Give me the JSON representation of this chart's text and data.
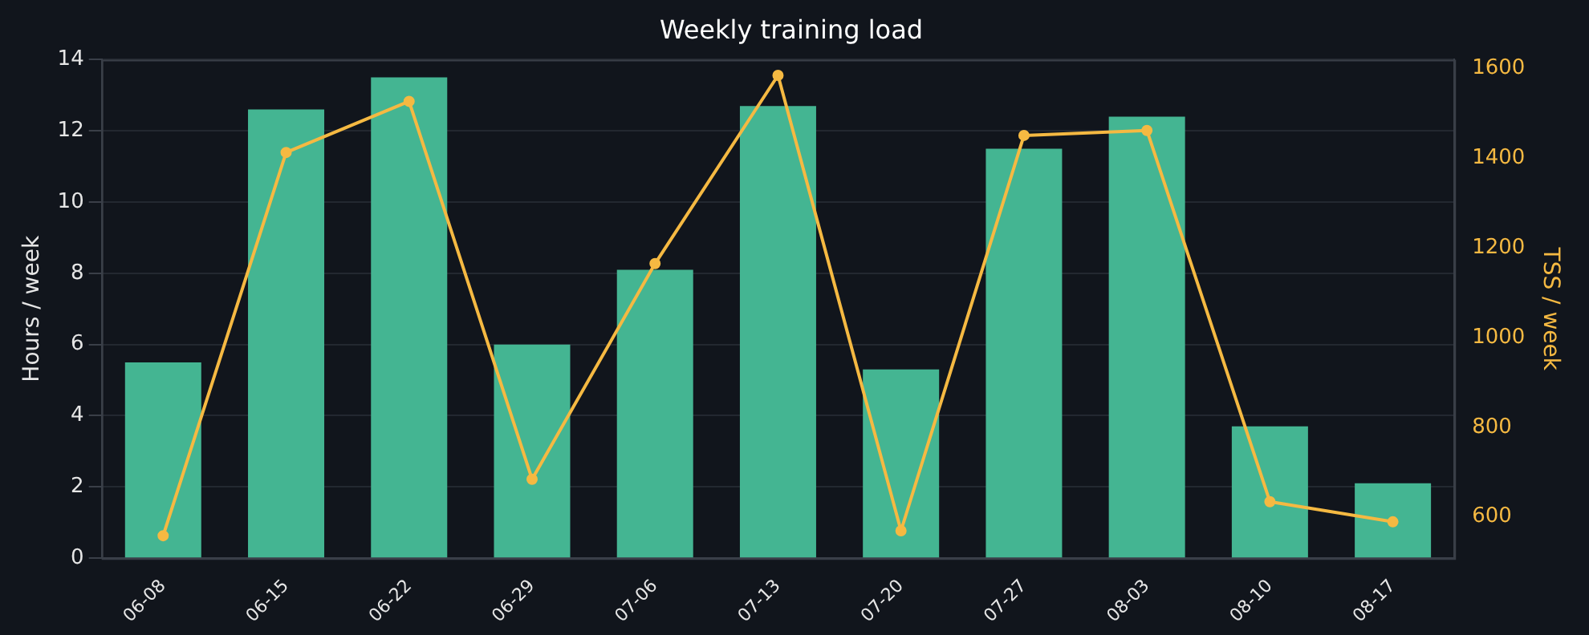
{
  "chart_data": {
    "type": "bar",
    "title": "Weekly training load",
    "ylabel": "Hours / week",
    "y2label": "TSS / week",
    "categories": [
      "06-08",
      "06-15",
      "06-22",
      "06-29",
      "07-06",
      "07-13",
      "07-20",
      "07-27",
      "08-03",
      "08-10",
      "08-17"
    ],
    "series": [
      {
        "color": "#44b592",
        "values": [
          5.5,
          12.6,
          13.5,
          6.0,
          8.1,
          12.7,
          5.3,
          11.5,
          12.4,
          3.7,
          2.1
        ]
      },
      {
        "type": "line",
        "axis": "y2",
        "color": "#f5b942",
        "values": [
          558,
          1413,
          1527,
          684,
          1165,
          1585,
          569,
          1451,
          1462,
          634,
          589
        ]
      }
    ],
    "ylim": [
      0,
      14
    ],
    "yticks": [
      0,
      2,
      4,
      6,
      8,
      10,
      12,
      14
    ],
    "y2lim": [
      508,
      1620
    ],
    "y2ticks": [
      600,
      800,
      1000,
      1200,
      1400,
      1600
    ],
    "grid": "y",
    "legend": false,
    "marker": "circle",
    "line_style": "solid"
  }
}
